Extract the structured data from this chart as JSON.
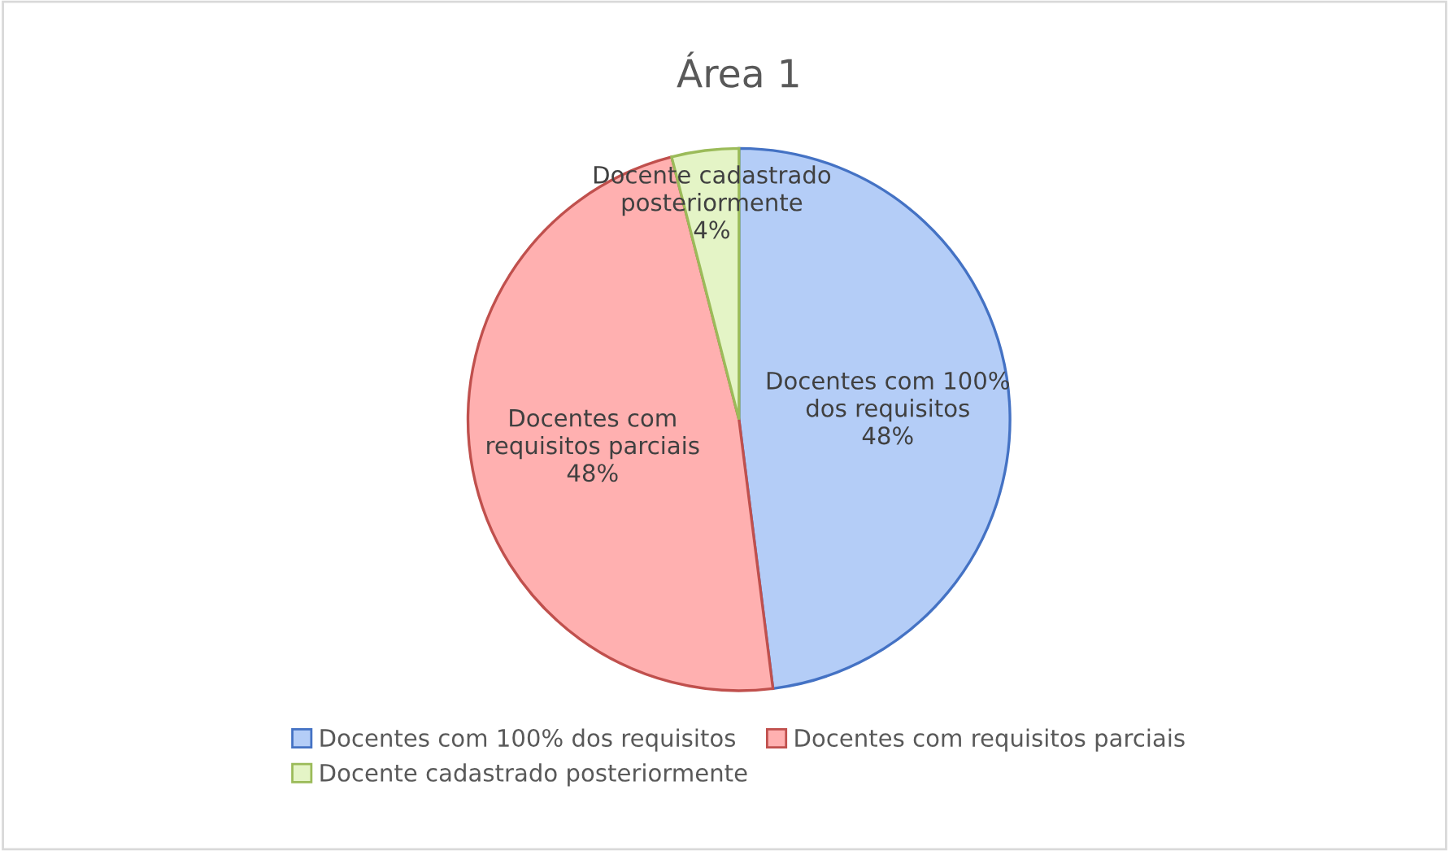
{
  "chart_data": {
    "type": "pie",
    "title": "Área 1",
    "categories": [
      "Docentes com 100% dos requisitos",
      "Docentes com requisitos parciais",
      "Docente cadastrado posteriormente"
    ],
    "values": [
      48,
      48,
      4
    ],
    "colors": [
      "#b4cdf7",
      "#ffb0b0",
      "#e4f4c6"
    ],
    "value_labels": [
      "48%",
      "48%",
      "4%"
    ],
    "legend": "bottom"
  }
}
